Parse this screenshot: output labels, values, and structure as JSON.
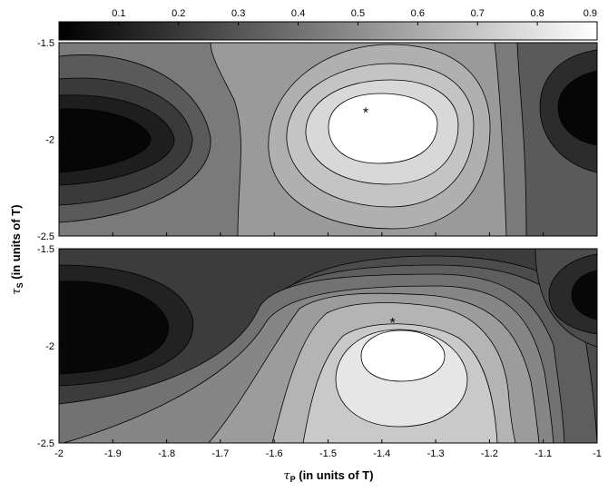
{
  "colorbar": {
    "colormap": "gray",
    "range": [
      0,
      0.9
    ],
    "ticks": [
      "0.1",
      "0.2",
      "0.3",
      "0.4",
      "0.5",
      "0.6",
      "0.7",
      "0.8",
      "0.9"
    ]
  },
  "chart_data": [
    {
      "type": "heatmap",
      "subtype": "filled-contour",
      "panel": "top",
      "xlim": [
        -2,
        -1
      ],
      "ylim": [
        -2.5,
        -1.5
      ],
      "levels": [
        0.1,
        0.2,
        0.3,
        0.4,
        0.5,
        0.6,
        0.7,
        0.8
      ],
      "peaks": [
        {
          "x": -1.43,
          "y": -1.85,
          "value": 0.9
        },
        {
          "x": -1.98,
          "y": -1.98,
          "value": 0.02
        },
        {
          "x": -1.0,
          "y": -1.82,
          "value": 0.02
        }
      ],
      "marker": {
        "symbol": "*",
        "x": -1.43,
        "y": -1.85
      },
      "ytick_labels": [
        "-1.5",
        "-2",
        "-2.5"
      ]
    },
    {
      "type": "heatmap",
      "subtype": "filled-contour",
      "panel": "bottom",
      "xlim": [
        -2,
        -1
      ],
      "ylim": [
        -2.5,
        -1.5
      ],
      "levels": [
        0.1,
        0.2,
        0.3,
        0.4,
        0.5,
        0.6,
        0.7,
        0.8
      ],
      "peaks": [
        {
          "x": -1.37,
          "y": -2.05,
          "value": 0.85
        },
        {
          "x": -1.95,
          "y": -1.95,
          "value": 0.03
        },
        {
          "x": -1.0,
          "y": -1.8,
          "value": 0.02
        }
      ],
      "marker": {
        "symbol": "*",
        "x": -1.38,
        "y": -1.87
      },
      "ytick_labels": [
        "-1.5",
        "-2",
        "-2.5"
      ],
      "xtick_labels": [
        "-2",
        "-1.9",
        "-1.8",
        "-1.7",
        "-1.6",
        "-1.5",
        "-1.4",
        "-1.3",
        "-1.2",
        "-1.1",
        "-1"
      ]
    }
  ],
  "axes": {
    "ylabel": {
      "symbol": "τ",
      "sub": "S",
      "text": "(in units of T)"
    },
    "xlabel": {
      "symbol": "τ",
      "sub": "P",
      "text": "(in units of T)"
    }
  }
}
